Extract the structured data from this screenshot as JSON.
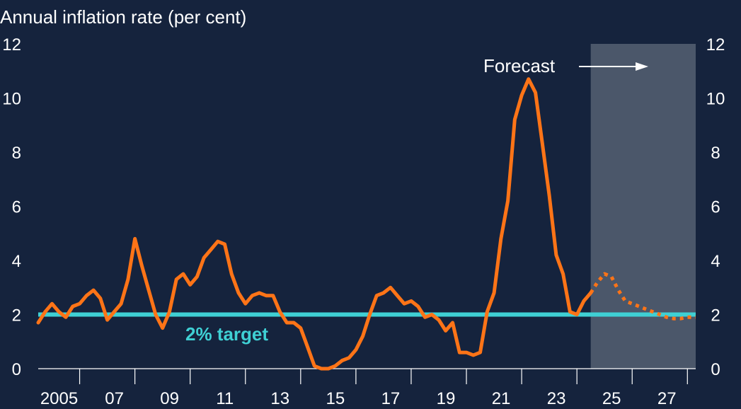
{
  "chart_data": {
    "type": "line",
    "title": "Annual inflation rate (per cent)",
    "xlabel": "",
    "ylabel": "",
    "xlim": [
      2004.5,
      2028.3
    ],
    "ylim": [
      0,
      12
    ],
    "y_ticks": [
      0,
      2,
      4,
      6,
      8,
      10,
      12
    ],
    "y_tick_labels": [
      "0",
      "2",
      "4",
      "6",
      "8",
      "10",
      "12"
    ],
    "x_ticks": [
      2005,
      2007,
      2009,
      2011,
      2013,
      2015,
      2017,
      2019,
      2021,
      2023,
      2025,
      2027
    ],
    "x_tick_labels": [
      "2005",
      "07",
      "09",
      "11",
      "13",
      "15",
      "17",
      "19",
      "21",
      "23",
      "25",
      "27"
    ],
    "dual_y_axis": true,
    "grid": false,
    "target": {
      "value": 2,
      "label": "2% target",
      "color": "#3fd0d4"
    },
    "forecast": {
      "label": "Forecast",
      "start": 2024.5,
      "end": 2028.3
    },
    "colors": {
      "background": "#15233d",
      "line": "#ff7417",
      "target": "#3fd0d4",
      "forecast_shade": "#4b576a",
      "text": "#ffffff"
    },
    "series": [
      {
        "style": "solid",
        "x": [
          2004.5,
          2004.75,
          2005,
          2005.25,
          2005.5,
          2005.75,
          2006,
          2006.25,
          2006.5,
          2006.75,
          2007,
          2007.25,
          2007.5,
          2007.75,
          2008,
          2008.25,
          2008.5,
          2008.75,
          2009,
          2009.25,
          2009.5,
          2009.75,
          2010,
          2010.25,
          2010.5,
          2010.75,
          2011,
          2011.25,
          2011.5,
          2011.75,
          2012,
          2012.25,
          2012.5,
          2012.75,
          2013,
          2013.25,
          2013.5,
          2013.75,
          2014,
          2014.25,
          2014.5,
          2014.75,
          2015,
          2015.25,
          2015.5,
          2015.75,
          2016,
          2016.25,
          2016.5,
          2016.75,
          2017,
          2017.25,
          2017.5,
          2017.75,
          2018,
          2018.25,
          2018.5,
          2018.75,
          2019,
          2019.25,
          2019.5,
          2019.75,
          2020,
          2020.25,
          2020.5,
          2020.75,
          2021,
          2021.25,
          2021.5,
          2021.75,
          2022,
          2022.25,
          2022.5,
          2022.75,
          2023,
          2023.25,
          2023.5,
          2023.75,
          2024,
          2024.25,
          2024.5
        ],
        "y": [
          1.7,
          2.1,
          2.4,
          2.1,
          1.9,
          2.3,
          2.4,
          2.7,
          2.9,
          2.6,
          1.8,
          2.1,
          2.4,
          3.3,
          4.8,
          3.8,
          2.9,
          2.0,
          1.5,
          2.1,
          3.3,
          3.5,
          3.1,
          3.4,
          4.1,
          4.4,
          4.7,
          4.6,
          3.5,
          2.8,
          2.4,
          2.7,
          2.8,
          2.7,
          2.7,
          2.1,
          1.7,
          1.7,
          1.5,
          0.8,
          0.1,
          0.0,
          0.0,
          0.1,
          0.3,
          0.4,
          0.7,
          1.2,
          2.0,
          2.7,
          2.8,
          3.0,
          2.7,
          2.4,
          2.5,
          2.3,
          1.9,
          2.0,
          1.8,
          1.4,
          1.7,
          0.6,
          0.6,
          0.5,
          0.6,
          2.1,
          2.8,
          4.8,
          6.2,
          9.2,
          10.1,
          10.7,
          10.2,
          8.3,
          6.4,
          4.2,
          3.5,
          2.1,
          2.0,
          2.5,
          2.8
        ]
      },
      {
        "style": "dotted",
        "x": [
          2024.5,
          2024.75,
          2025,
          2025.25,
          2025.5,
          2025.75,
          2026,
          2026.25,
          2026.5,
          2026.75,
          2027,
          2027.25,
          2027.5,
          2027.75,
          2028,
          2028.3
        ],
        "y": [
          2.8,
          3.2,
          3.5,
          3.4,
          2.9,
          2.5,
          2.4,
          2.3,
          2.2,
          2.1,
          2.0,
          1.9,
          1.85,
          1.85,
          1.9,
          1.9
        ]
      }
    ]
  }
}
